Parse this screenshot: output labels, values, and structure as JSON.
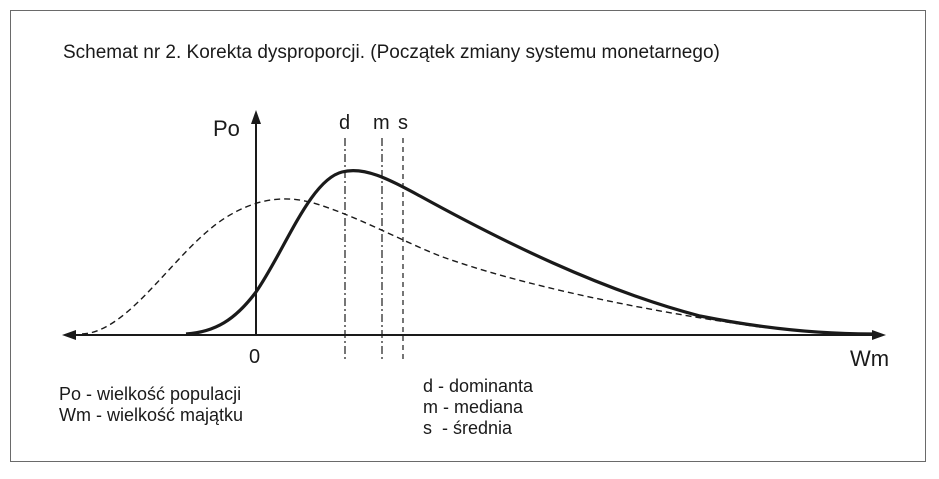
{
  "title": "Schemat nr 2. Korekta dysproporcji. (Początek zmiany systemu monetarnego)",
  "axes": {
    "y_label": "Po",
    "x_label": "Wm",
    "origin_label": "0"
  },
  "markers": {
    "d": "d",
    "m": "m",
    "s": "s"
  },
  "legend_left": [
    "Po - wielkość populacji",
    "Wm - wielkość majątku"
  ],
  "legend_right": [
    "d - dominanta",
    "m - mediana",
    "s  - średnia"
  ],
  "colors": {
    "ink": "#1a1a1a",
    "frame": "#6a6a6a"
  }
}
